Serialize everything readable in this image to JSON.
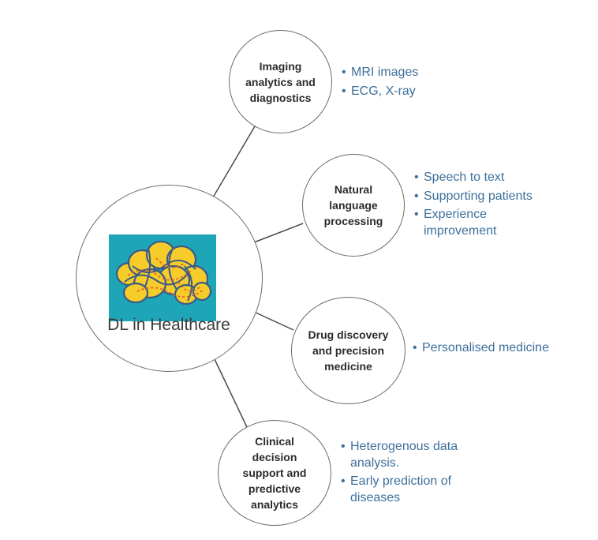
{
  "center": {
    "label": "DL in Healthcare",
    "image": "brain-illustration"
  },
  "nodes": [
    {
      "label": "Imaging analytics and diagnostics",
      "bullets": [
        "MRI images",
        "ECG, X-ray"
      ]
    },
    {
      "label": "Natural language processing",
      "bullets": [
        "Speech to text",
        "Supporting patients",
        "Experience improvement"
      ]
    },
    {
      "label": "Drug discovery and precision medicine",
      "bullets": [
        "Personalised medicine"
      ]
    },
    {
      "label": "Clinical decision support and predictive analytics",
      "bullets": [
        "Heterogenous data analysis.",
        "Early prediction of diseases"
      ]
    }
  ],
  "colors": {
    "bullet_text": "#3d6f9a",
    "circle_border": "#6b6b6b",
    "brain_bg": "#1fa5b8",
    "brain_fill": "#f5cc2a",
    "brain_lines": "#e4582a"
  }
}
